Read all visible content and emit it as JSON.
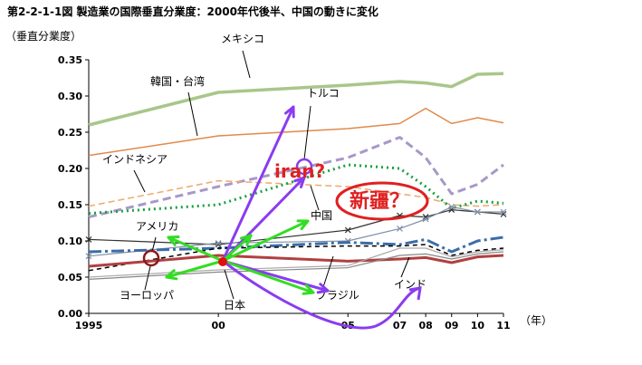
{
  "chart_data": {
    "type": "line",
    "title": "第2-2-1-1図 製造業の国際垂直分業度：2000年代後半、中国の動きに変化",
    "ylabel": "（垂直分業度）",
    "xlabel": "（年）",
    "ylim": [
      0,
      0.35
    ],
    "yticks": [
      "0.00",
      "0.05",
      "0.10",
      "0.15",
      "0.20",
      "0.25",
      "0.30",
      "0.35"
    ],
    "x": [
      1995,
      2000,
      2005,
      2007,
      2008,
      2009,
      2010,
      2011
    ],
    "xtick_labels": [
      "1995",
      "00",
      "05",
      "07",
      "08",
      "09",
      "10",
      "11"
    ],
    "grid": false,
    "series": [
      {
        "name": "メキシコ",
        "color": "#a9c68a",
        "points": [
          [
            1995,
            0.26
          ],
          [
            2000,
            0.305
          ],
          [
            2005,
            0.315
          ],
          [
            2007,
            0.32
          ],
          [
            2008,
            0.318
          ],
          [
            2009,
            0.313
          ],
          [
            2010,
            0.33
          ],
          [
            2011,
            0.331
          ]
        ]
      },
      {
        "name": "韓国・台湾",
        "color": "#e08a4a",
        "points": [
          [
            1995,
            0.218
          ],
          [
            2000,
            0.245
          ],
          [
            2005,
            0.255
          ],
          [
            2007,
            0.262
          ],
          [
            2008,
            0.283
          ],
          [
            2009,
            0.262
          ],
          [
            2010,
            0.27
          ],
          [
            2011,
            0.263
          ]
        ]
      },
      {
        "name": "トルコ",
        "color": "#a898c8",
        "points": [
          [
            1995,
            0.133
          ],
          [
            2000,
            0.175
          ],
          [
            2005,
            0.215
          ],
          [
            2007,
            0.243
          ],
          [
            2008,
            0.215
          ],
          [
            2009,
            0.165
          ],
          [
            2010,
            0.178
          ],
          [
            2011,
            0.205
          ]
        ]
      },
      {
        "name": "インドネシア",
        "color": "#f0a868",
        "points": [
          [
            1995,
            0.148
          ],
          [
            2000,
            0.183
          ],
          [
            2005,
            0.175
          ],
          [
            2007,
            0.165
          ],
          [
            2008,
            0.16
          ],
          [
            2009,
            0.15
          ],
          [
            2010,
            0.148
          ],
          [
            2011,
            0.15
          ]
        ]
      },
      {
        "name": "中国",
        "color": "#18a040",
        "points": [
          [
            1995,
            0.138
          ],
          [
            2000,
            0.15
          ],
          [
            2005,
            0.205
          ],
          [
            2007,
            0.2
          ],
          [
            2008,
            0.175
          ],
          [
            2009,
            0.145
          ],
          [
            2010,
            0.155
          ],
          [
            2011,
            0.152
          ]
        ]
      },
      {
        "name": "",
        "color": "#333333",
        "points": [
          [
            1995,
            0.102
          ],
          [
            2000,
            0.095
          ],
          [
            2005,
            0.115
          ],
          [
            2007,
            0.135
          ],
          [
            2008,
            0.133
          ],
          [
            2009,
            0.143
          ],
          [
            2010,
            0.14
          ],
          [
            2011,
            0.137
          ]
        ]
      },
      {
        "name": "",
        "color": "#7f90a8",
        "points": [
          [
            1995,
            0.079
          ],
          [
            2000,
            0.097
          ],
          [
            2005,
            0.1
          ],
          [
            2007,
            0.117
          ],
          [
            2008,
            0.13
          ],
          [
            2009,
            0.147
          ],
          [
            2010,
            0.14
          ],
          [
            2011,
            0.14
          ]
        ]
      },
      {
        "name": "アメリカ",
        "color": "#3a6da8",
        "points": [
          [
            1995,
            0.085
          ],
          [
            2000,
            0.09
          ],
          [
            2005,
            0.098
          ],
          [
            2007,
            0.095
          ],
          [
            2008,
            0.102
          ],
          [
            2009,
            0.085
          ],
          [
            2010,
            0.1
          ],
          [
            2011,
            0.105
          ]
        ]
      },
      {
        "name": "ヨーロッパ",
        "color": "#000000",
        "points": [
          [
            1995,
            0.059
          ],
          [
            2000,
            0.09
          ],
          [
            2005,
            0.093
          ],
          [
            2007,
            0.093
          ],
          [
            2008,
            0.095
          ],
          [
            2009,
            0.08
          ],
          [
            2010,
            0.087
          ],
          [
            2011,
            0.09
          ]
        ]
      },
      {
        "name": "日本",
        "color": "#b04040",
        "points": [
          [
            1995,
            0.065
          ],
          [
            2000,
            0.08
          ],
          [
            2005,
            0.072
          ],
          [
            2007,
            0.075
          ],
          [
            2008,
            0.077
          ],
          [
            2009,
            0.07
          ],
          [
            2010,
            0.078
          ],
          [
            2011,
            0.08
          ]
        ]
      },
      {
        "name": "ブラジル",
        "color": "#888888",
        "points": [
          [
            1995,
            0.047
          ],
          [
            2000,
            0.057
          ],
          [
            2005,
            0.063
          ],
          [
            2007,
            0.08
          ],
          [
            2008,
            0.082
          ],
          [
            2009,
            0.075
          ],
          [
            2010,
            0.082
          ],
          [
            2011,
            0.085
          ]
        ]
      },
      {
        "name": "インド",
        "color": "#aaaaaa",
        "points": [
          [
            1995,
            0.05
          ],
          [
            2000,
            0.06
          ],
          [
            2005,
            0.066
          ],
          [
            2007,
            0.09
          ],
          [
            2008,
            0.09
          ],
          [
            2009,
            0.078
          ],
          [
            2010,
            0.085
          ],
          [
            2011,
            0.088
          ]
        ]
      }
    ],
    "annotations": [
      "iran?",
      "新疆？"
    ]
  }
}
